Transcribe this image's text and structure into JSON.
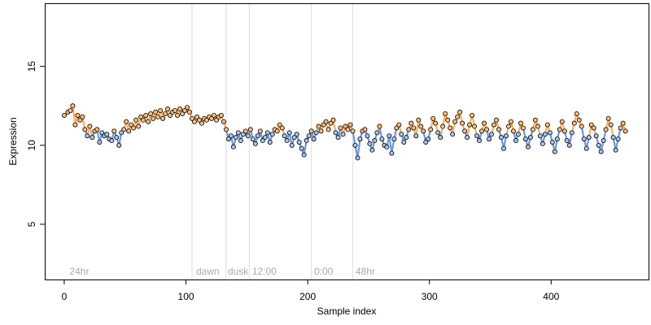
{
  "chart_data": {
    "type": "scatter",
    "xlabel": "Sample index",
    "ylabel": "Expression",
    "xlim": [
      -16,
      480
    ],
    "ylim": [
      1.5,
      19.0
    ],
    "x_ticks": [
      0,
      100,
      200,
      300,
      400
    ],
    "y_ticks": [
      5,
      10,
      15
    ],
    "grid": false,
    "legend": "none",
    "colors": {
      "light_phase": "#ffbe7d",
      "dark_phase": "#a6c4ee",
      "fit_light": "#f5b064",
      "fit_dark": "#6f97d8",
      "point_outline": "#000000",
      "phase_divider": "#dddddd",
      "phase_label": "#aaaaaa"
    },
    "phase_dividers": [
      105,
      133,
      152,
      203,
      237
    ],
    "phase_labels": [
      {
        "x": 3,
        "text": "24hr"
      },
      {
        "x": 107,
        "text": "dawn"
      },
      {
        "x": 133,
        "text": "dusk"
      },
      {
        "x": 153,
        "text": "12:00"
      },
      {
        "x": 204,
        "text": "0:00"
      },
      {
        "x": 238,
        "text": "48hr"
      }
    ],
    "series": [
      {
        "values": [
          [
            0,
            11.9
          ],
          [
            3,
            12.1
          ],
          [
            5,
            12.2
          ],
          [
            7,
            12.5
          ],
          [
            9,
            11.3
          ],
          [
            11,
            11.9
          ],
          [
            13,
            11.6
          ],
          [
            15,
            11.8
          ],
          [
            17,
            11.0
          ],
          [
            19,
            10.6
          ],
          [
            21,
            11.2
          ],
          [
            23,
            10.5
          ],
          [
            25,
            10.9
          ],
          [
            27,
            11.0
          ],
          [
            29,
            10.2
          ],
          [
            31,
            10.8
          ],
          [
            33,
            10.6
          ],
          [
            35,
            10.7
          ],
          [
            37,
            10.4
          ],
          [
            39,
            10.3
          ],
          [
            41,
            10.9
          ],
          [
            43,
            10.5
          ],
          [
            45,
            10.0
          ],
          [
            47,
            10.8
          ],
          [
            49,
            11.0
          ],
          [
            51,
            11.5
          ],
          [
            53,
            10.9
          ],
          [
            55,
            11.3
          ],
          [
            57,
            11.1
          ],
          [
            59,
            11.6
          ],
          [
            61,
            11.2
          ],
          [
            63,
            11.8
          ],
          [
            65,
            11.6
          ],
          [
            67,
            11.9
          ],
          [
            69,
            11.5
          ],
          [
            71,
            12.0
          ],
          [
            73,
            11.7
          ],
          [
            75,
            12.1
          ],
          [
            77,
            11.8
          ],
          [
            79,
            12.2
          ],
          [
            81,
            11.7
          ],
          [
            83,
            12.0
          ],
          [
            85,
            12.3
          ],
          [
            87,
            11.9
          ],
          [
            89,
            12.1
          ],
          [
            91,
            12.2
          ],
          [
            93,
            11.9
          ],
          [
            95,
            12.3
          ],
          [
            97,
            12.0
          ],
          [
            99,
            12.2
          ],
          [
            101,
            12.4
          ],
          [
            103,
            12.1
          ],
          [
            105,
            11.7
          ],
          [
            107,
            11.5
          ],
          [
            109,
            11.8
          ],
          [
            111,
            11.6
          ],
          [
            113,
            11.4
          ],
          [
            115,
            11.7
          ],
          [
            117,
            11.6
          ],
          [
            119,
            11.8
          ],
          [
            121,
            11.7
          ],
          [
            123,
            11.9
          ],
          [
            125,
            11.6
          ],
          [
            127,
            11.8
          ],
          [
            129,
            11.9
          ],
          [
            131,
            11.5
          ],
          [
            133,
            11.0
          ],
          [
            135,
            10.4
          ],
          [
            137,
            10.6
          ],
          [
            139,
            9.9
          ],
          [
            141,
            10.5
          ],
          [
            143,
            10.8
          ],
          [
            145,
            10.3
          ],
          [
            147,
            10.7
          ],
          [
            149,
            10.9
          ],
          [
            151,
            10.6
          ],
          [
            153,
            11.0
          ],
          [
            155,
            10.4
          ],
          [
            157,
            10.1
          ],
          [
            159,
            10.6
          ],
          [
            161,
            10.9
          ],
          [
            163,
            10.3
          ],
          [
            165,
            10.5
          ],
          [
            167,
            10.8
          ],
          [
            169,
            10.2
          ],
          [
            171,
            10.7
          ],
          [
            173,
            11.0
          ],
          [
            175,
            10.9
          ],
          [
            177,
            11.3
          ],
          [
            179,
            11.1
          ],
          [
            181,
            10.6
          ],
          [
            183,
            10.3
          ],
          [
            185,
            10.8
          ],
          [
            187,
            10.0
          ],
          [
            189,
            10.5
          ],
          [
            191,
            10.7
          ],
          [
            193,
            10.2
          ],
          [
            195,
            9.8
          ],
          [
            197,
            9.4
          ],
          [
            199,
            10.3
          ],
          [
            201,
            10.6
          ],
          [
            203,
            10.9
          ],
          [
            205,
            10.4
          ],
          [
            207,
            10.8
          ],
          [
            209,
            11.2
          ],
          [
            211,
            10.9
          ],
          [
            213,
            11.3
          ],
          [
            215,
            11.5
          ],
          [
            217,
            11.0
          ],
          [
            219,
            11.4
          ],
          [
            221,
            11.6
          ],
          [
            223,
            10.8
          ],
          [
            225,
            10.5
          ],
          [
            227,
            11.1
          ],
          [
            229,
            10.7
          ],
          [
            231,
            11.2
          ],
          [
            233,
            11.0
          ],
          [
            235,
            11.3
          ],
          [
            237,
            10.9
          ],
          [
            239,
            10.0
          ],
          [
            241,
            9.2
          ],
          [
            243,
            10.4
          ],
          [
            245,
            10.9
          ],
          [
            247,
            11.0
          ],
          [
            249,
            10.6
          ],
          [
            251,
            10.1
          ],
          [
            253,
            9.7
          ],
          [
            255,
            10.3
          ],
          [
            257,
            10.8
          ],
          [
            259,
            11.2
          ],
          [
            261,
            10.4
          ],
          [
            263,
            10.0
          ],
          [
            265,
            9.9
          ],
          [
            267,
            10.6
          ],
          [
            269,
            9.5
          ],
          [
            271,
            10.4
          ],
          [
            273,
            11.1
          ],
          [
            275,
            11.3
          ],
          [
            277,
            10.7
          ],
          [
            279,
            10.2
          ],
          [
            281,
            10.5
          ],
          [
            283,
            11.0
          ],
          [
            285,
            11.4
          ],
          [
            287,
            11.1
          ],
          [
            289,
            10.6
          ],
          [
            291,
            11.6
          ],
          [
            293,
            11.2
          ],
          [
            295,
            10.9
          ],
          [
            297,
            10.2
          ],
          [
            299,
            10.4
          ],
          [
            301,
            11.0
          ],
          [
            303,
            11.7
          ],
          [
            305,
            11.4
          ],
          [
            307,
            10.8
          ],
          [
            309,
            10.5
          ],
          [
            311,
            11.2
          ],
          [
            313,
            12.0
          ],
          [
            315,
            11.6
          ],
          [
            317,
            11.1
          ],
          [
            319,
            10.7
          ],
          [
            321,
            11.5
          ],
          [
            323,
            11.8
          ],
          [
            325,
            12.1
          ],
          [
            327,
            11.4
          ],
          [
            329,
            10.9
          ],
          [
            331,
            10.5
          ],
          [
            333,
            11.3
          ],
          [
            335,
            11.9
          ],
          [
            337,
            11.2
          ],
          [
            339,
            10.6
          ],
          [
            341,
            10.3
          ],
          [
            343,
            10.9
          ],
          [
            345,
            11.4
          ],
          [
            347,
            11.0
          ],
          [
            349,
            10.4
          ],
          [
            351,
            10.7
          ],
          [
            353,
            11.3
          ],
          [
            355,
            11.6
          ],
          [
            357,
            11.0
          ],
          [
            359,
            10.5
          ],
          [
            361,
            9.8
          ],
          [
            363,
            10.6
          ],
          [
            365,
            11.2
          ],
          [
            367,
            11.5
          ],
          [
            369,
            10.9
          ],
          [
            371,
            10.3
          ],
          [
            373,
            10.7
          ],
          [
            375,
            11.4
          ],
          [
            377,
            11.1
          ],
          [
            379,
            10.4
          ],
          [
            381,
            9.9
          ],
          [
            383,
            10.5
          ],
          [
            385,
            11.0
          ],
          [
            387,
            11.6
          ],
          [
            389,
            11.2
          ],
          [
            391,
            10.6
          ],
          [
            393,
            10.1
          ],
          [
            395,
            10.7
          ],
          [
            397,
            11.3
          ],
          [
            399,
            10.8
          ],
          [
            401,
            10.2
          ],
          [
            403,
            9.6
          ],
          [
            405,
            10.4
          ],
          [
            407,
            11.0
          ],
          [
            409,
            11.5
          ],
          [
            411,
            10.9
          ],
          [
            413,
            10.3
          ],
          [
            415,
            10.0
          ],
          [
            417,
            10.8
          ],
          [
            419,
            11.4
          ],
          [
            421,
            12.0
          ],
          [
            423,
            11.6
          ],
          [
            425,
            11.2
          ],
          [
            427,
            10.4
          ],
          [
            429,
            9.8
          ],
          [
            431,
            10.5
          ],
          [
            433,
            11.3
          ],
          [
            435,
            11.1
          ],
          [
            437,
            10.6
          ],
          [
            439,
            10.0
          ],
          [
            441,
            9.6
          ],
          [
            443,
            10.3
          ],
          [
            445,
            11.0
          ],
          [
            447,
            11.7
          ],
          [
            449,
            11.3
          ],
          [
            451,
            10.5
          ],
          [
            453,
            9.7
          ],
          [
            455,
            10.4
          ],
          [
            457,
            11.1
          ],
          [
            459,
            11.4
          ],
          [
            461,
            10.9
          ]
        ]
      }
    ]
  }
}
